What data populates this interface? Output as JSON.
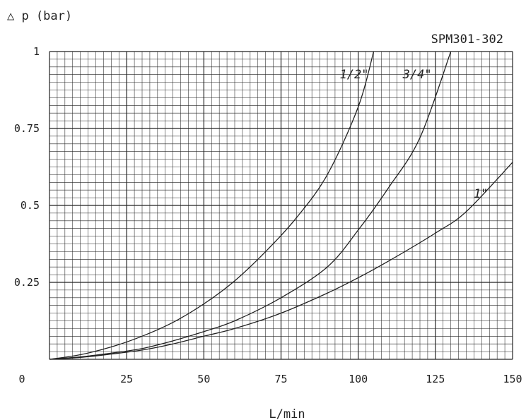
{
  "chart_data": {
    "type": "line",
    "title": "SPM301-302",
    "ylabel": "△ p (bar)",
    "xlabel": "L/min",
    "xlim": [
      0,
      150
    ],
    "ylim": [
      0,
      1
    ],
    "x_ticks": [
      "25",
      "50",
      "75",
      "100",
      "125",
      "150"
    ],
    "y_ticks": [
      "0.25",
      "0.5",
      "0.75",
      "1"
    ],
    "origin_label": "0",
    "grid": true,
    "series": [
      {
        "name": "1/2\"",
        "x": [
          0,
          10,
          20,
          30,
          40,
          50,
          60,
          70,
          80,
          90,
          100,
          105
        ],
        "y": [
          0,
          0.015,
          0.04,
          0.075,
          0.12,
          0.18,
          0.255,
          0.35,
          0.46,
          0.6,
          0.82,
          1.0
        ]
      },
      {
        "name": "3/4\"",
        "x": [
          0,
          10,
          20,
          30,
          40,
          50,
          60,
          75,
          90,
          100,
          110,
          120,
          130
        ],
        "y": [
          0,
          0.008,
          0.02,
          0.035,
          0.06,
          0.09,
          0.125,
          0.2,
          0.3,
          0.42,
          0.56,
          0.72,
          1.0
        ]
      },
      {
        "name": "1\"",
        "x": [
          0,
          10,
          20,
          30,
          40,
          50,
          60,
          75,
          90,
          100,
          110,
          125,
          135,
          150
        ],
        "y": [
          0,
          0.006,
          0.017,
          0.03,
          0.05,
          0.075,
          0.1,
          0.15,
          0.215,
          0.265,
          0.32,
          0.41,
          0.48,
          0.64
        ]
      }
    ]
  },
  "colors": {
    "ink": "#222222",
    "grid": "#222222",
    "background": "#ffffff"
  }
}
